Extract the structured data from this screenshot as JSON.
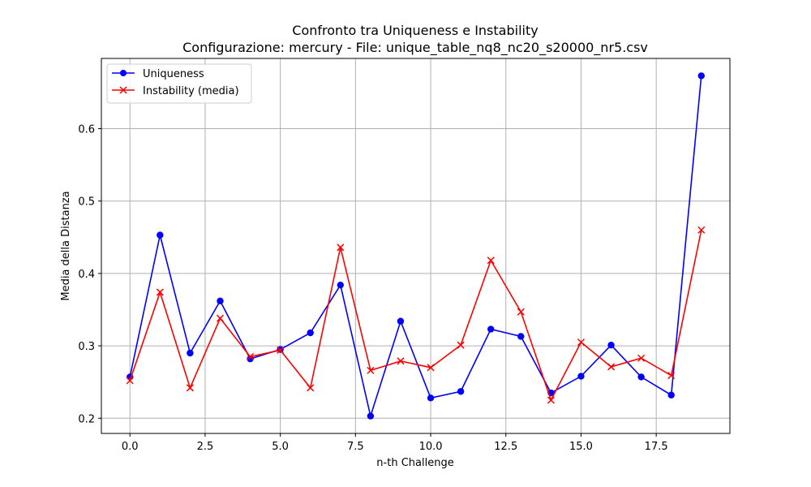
{
  "chart_data": {
    "type": "line",
    "title": "Confronto tra Uniqueness e Instability",
    "subtitle": "Configurazione: mercury - File: unique_table_nq8_nc20_s20000_nr5.csv",
    "xlabel": "n-th Challenge",
    "ylabel": "Media della Distanza",
    "xlim": [
      -0.95,
      19.95
    ],
    "ylim": [
      0.179,
      0.697
    ],
    "xticks": [
      0.0,
      2.5,
      5.0,
      7.5,
      10.0,
      12.5,
      15.0,
      17.5
    ],
    "xtick_labels": [
      "0.0",
      "2.5",
      "5.0",
      "7.5",
      "10.0",
      "12.5",
      "15.0",
      "17.5"
    ],
    "yticks": [
      0.2,
      0.3,
      0.4,
      0.5,
      0.6
    ],
    "ytick_labels": [
      "0.2",
      "0.3",
      "0.4",
      "0.5",
      "0.6"
    ],
    "grid": true,
    "legend_position": "top-left",
    "x": [
      0,
      1,
      2,
      3,
      4,
      5,
      6,
      7,
      8,
      9,
      10,
      11,
      12,
      13,
      14,
      15,
      16,
      17,
      18,
      19
    ],
    "series": [
      {
        "name": "Uniqueness",
        "color": "#0000ff",
        "marker": "circle",
        "values": [
          0.257,
          0.453,
          0.29,
          0.362,
          0.282,
          0.295,
          0.318,
          0.384,
          0.203,
          0.334,
          0.228,
          0.237,
          0.323,
          0.313,
          0.235,
          0.258,
          0.301,
          0.257,
          0.232,
          0.673
        ]
      },
      {
        "name": "Instability (media)",
        "color": "#ff0000",
        "marker": "x",
        "values": [
          0.252,
          0.374,
          0.242,
          0.338,
          0.285,
          0.294,
          0.242,
          0.436,
          0.266,
          0.279,
          0.27,
          0.301,
          0.418,
          0.347,
          0.225,
          0.305,
          0.271,
          0.283,
          0.259,
          0.46
        ]
      }
    ]
  }
}
